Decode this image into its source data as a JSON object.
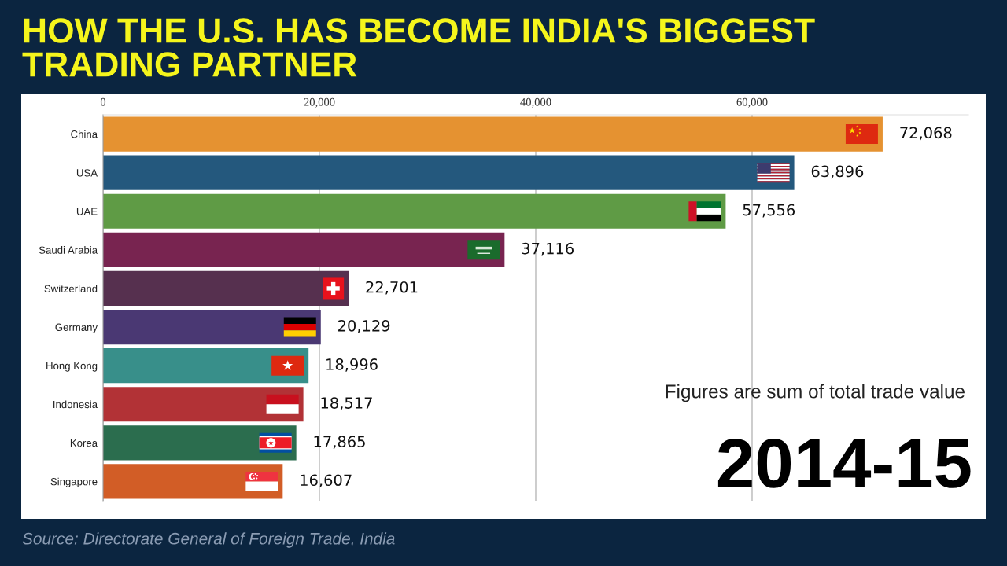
{
  "chart_data": {
    "type": "bar",
    "orientation": "horizontal",
    "title": "HOW THE U.S. HAS BECOME INDIA'S BIGGEST\nTRADING PARTNER",
    "categories": [
      "China",
      "USA",
      "UAE",
      "Saudi Arabia",
      "Switzerland",
      "Germany",
      "Hong Kong",
      "Indonesia",
      "Korea",
      "Singapore"
    ],
    "values": [
      72068,
      63896,
      57556,
      37116,
      22701,
      20129,
      18996,
      18517,
      17865,
      16607
    ],
    "colors": [
      "#e59231",
      "#24587d",
      "#5f9b45",
      "#782450",
      "#56304f",
      "#4a3873",
      "#388f8a",
      "#b23236",
      "#2b6d4e",
      "#d25d26"
    ],
    "value_labels": [
      "72,068",
      "63,896",
      "57,556",
      "37,116",
      "22,701",
      "20,129",
      "18,996",
      "18,517",
      "17,865",
      "16,607"
    ],
    "xlim": [
      0,
      80000
    ],
    "xticks": [
      0,
      {
        "value": 20000,
        "label": "20,000"
      },
      {
        "value": 40000,
        "label": "40,000"
      },
      {
        "value": 60000,
        "label": "60,000"
      }
    ],
    "grid": "x",
    "annotations": [
      "Figures are sum of total trade value",
      "2014-15",
      "Source: Directorate General of Foreign Trade, India"
    ]
  }
}
